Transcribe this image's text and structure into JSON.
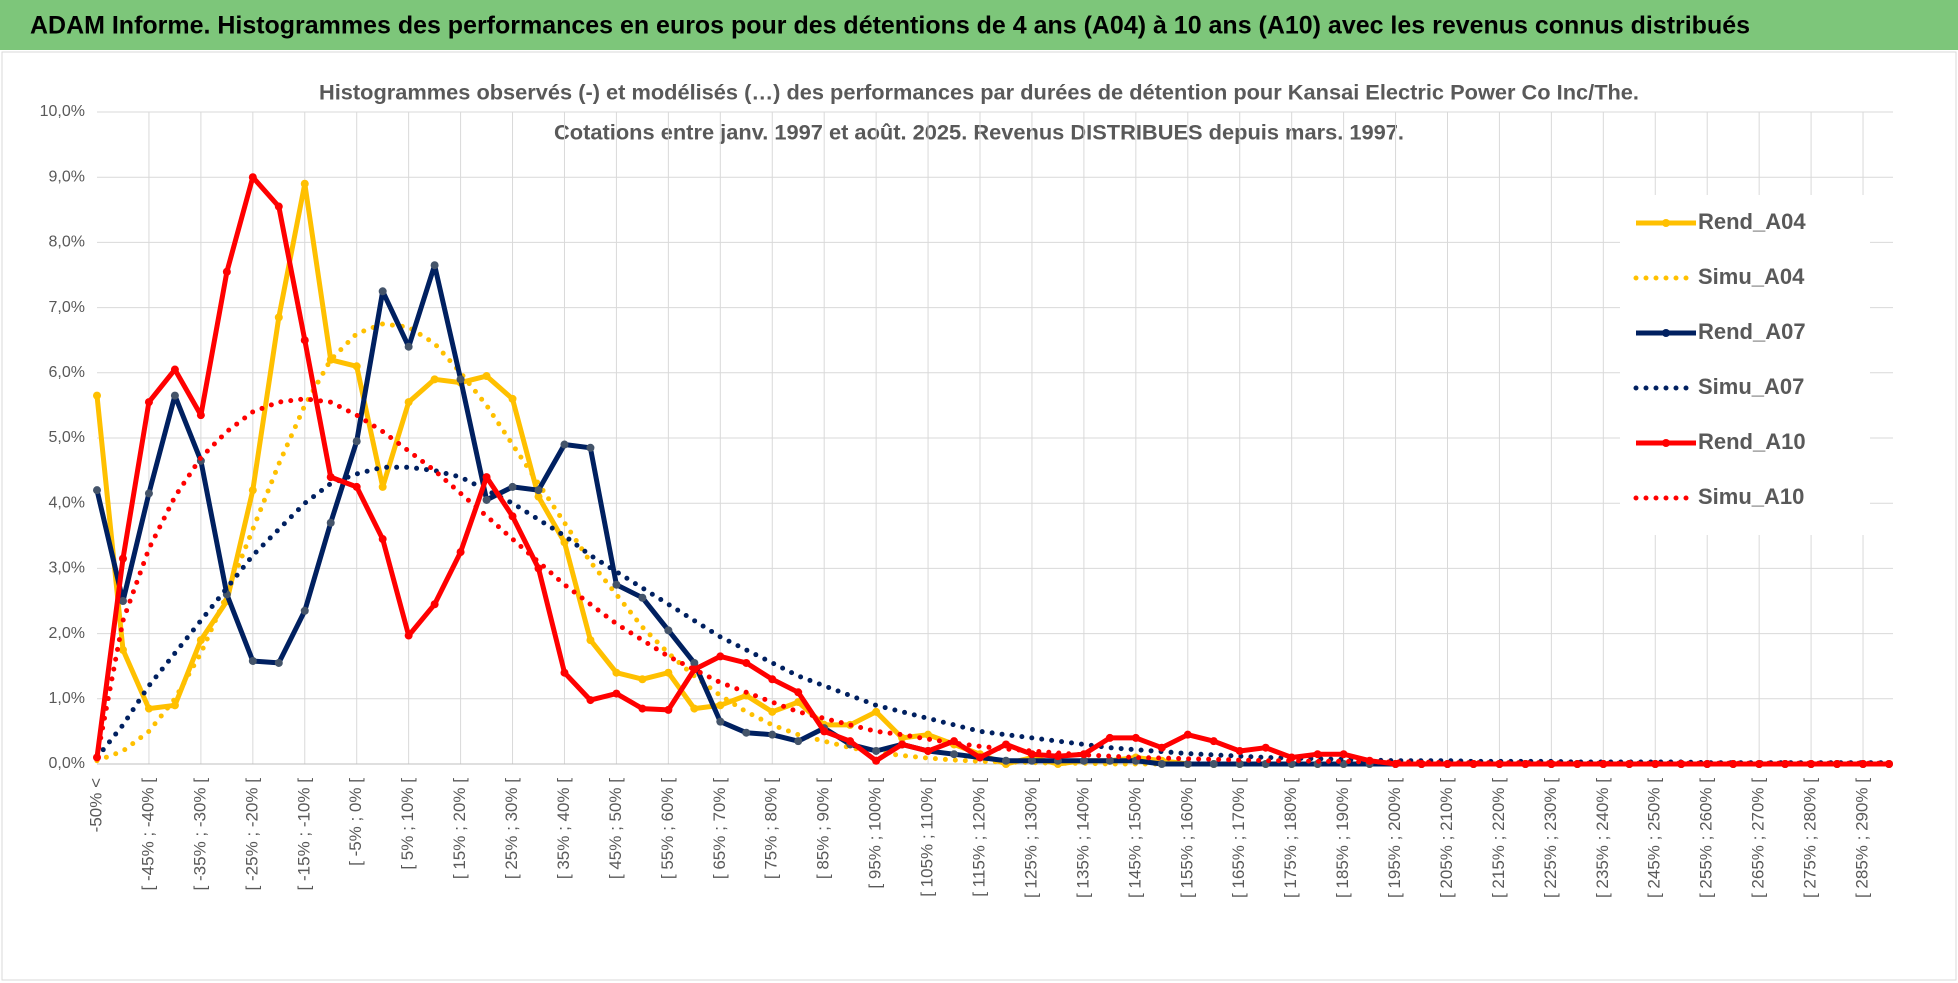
{
  "header": {
    "title": "ADAM Informe. Histogrammes des performances en euros pour des détentions de 4 ans (A04) à 10 ans (A10) avec les revenus connus distribués"
  },
  "chart_data": {
    "type": "line",
    "title": "Histogrammes observés (-) et modélisés (…)  des performances par durées de détention pour Kansai Electric Power Co Inc/The.",
    "subtitle": "Cotations entre janv. 1997 et août. 2025. Revenus DISTRIBUES depuis mars. 1997.",
    "categories": [
      "-50% <",
      null,
      "[ -45% ; -40% [",
      null,
      "[ -35% ; -30% [",
      null,
      "[ -25% ; -20% [",
      null,
      "[ -15% ; -10% [",
      null,
      "[ -5% ; 0% [",
      null,
      "[ 5% ; 10% [",
      null,
      "[ 15% ; 20% [",
      null,
      "[ 25% ; 30% [",
      null,
      "[ 35% ; 40% [",
      null,
      "[ 45% ; 50% [",
      null,
      "[ 55% ; 60% [",
      null,
      "[ 65% ; 70% [",
      null,
      "[ 75% ; 80% [",
      null,
      "[ 85% ; 90% [",
      null,
      "[ 95% ; 100% [",
      null,
      "[ 105% ; 110% [",
      null,
      "[ 115% ; 120% [",
      null,
      "[ 125% ; 130% [",
      null,
      "[ 135% ; 140% [",
      null,
      "[ 145% ; 150% [",
      null,
      "[ 155% ; 160% [",
      null,
      "[ 165% ; 170% [",
      null,
      "[ 175% ; 180% [",
      null,
      "[ 185% ; 190% [",
      null,
      "[ 195% ; 200% [",
      null,
      "[ 205% ; 210% [",
      null,
      "[ 215% ; 220% [",
      null,
      "[ 225% ; 230% [",
      null,
      "[ 235% ; 240% [",
      null,
      "[ 245% ; 250% [",
      null,
      "[ 255% ; 260% [",
      null,
      "[ 265% ; 270% [",
      null,
      "[ 275% ; 280% [",
      null,
      "[ 285% ; 290% [",
      null
    ],
    "ylim": [
      0,
      10
    ],
    "yticks": [
      {
        "value": 0,
        "label": "0,0%"
      },
      {
        "value": 1,
        "label": "1,0%"
      },
      {
        "value": 2,
        "label": "2,0%"
      },
      {
        "value": 3,
        "label": "3,0%"
      },
      {
        "value": 4,
        "label": "4,0%"
      },
      {
        "value": 5,
        "label": "5,0%"
      },
      {
        "value": 6,
        "label": "6,0%"
      },
      {
        "value": 7,
        "label": "7,0%"
      },
      {
        "value": 8,
        "label": "8,0%"
      },
      {
        "value": 9,
        "label": "9,0%"
      },
      {
        "value": 10,
        "label": "10,0%"
      }
    ],
    "grid": true,
    "legend": "right",
    "series": [
      {
        "name": "Rend_A04",
        "color": "#FFC000",
        "line_style": "solid",
        "markers": true,
        "values": [
          5.65,
          1.75,
          0.85,
          0.9,
          1.9,
          2.5,
          4.2,
          6.85,
          8.9,
          6.2,
          6.1,
          4.25,
          5.55,
          5.9,
          5.85,
          5.95,
          5.6,
          4.1,
          3.4,
          1.9,
          1.4,
          1.3,
          1.4,
          0.85,
          0.9,
          1.05,
          0.8,
          0.95,
          0.6,
          0.6,
          0.8,
          0.4,
          0.45,
          0.3,
          0.15,
          0.0,
          0.1,
          0.0,
          0.05,
          0.05,
          0.1,
          0.05,
          0,
          0,
          0,
          0,
          0,
          0,
          0,
          0,
          0,
          0,
          0,
          0,
          0,
          0,
          0,
          0,
          0,
          0,
          0,
          0,
          0,
          0,
          0,
          0,
          0,
          0,
          0,
          0
        ]
      },
      {
        "name": "Simu_A04",
        "color": "#FFC000",
        "line_style": "dotted",
        "markers": false,
        "values": [
          0.05,
          0.2,
          0.5,
          1.0,
          1.7,
          2.6,
          3.6,
          4.6,
          5.5,
          6.2,
          6.6,
          6.75,
          6.7,
          6.45,
          6.0,
          5.5,
          4.9,
          4.3,
          3.7,
          3.1,
          2.6,
          2.1,
          1.7,
          1.35,
          1.05,
          0.8,
          0.6,
          0.45,
          0.35,
          0.25,
          0.18,
          0.13,
          0.09,
          0.06,
          0.04,
          0.03,
          0.02,
          0.01,
          0.01,
          0,
          0,
          0,
          0,
          0,
          0,
          0,
          0,
          0,
          0,
          0,
          0,
          0,
          0,
          0,
          0,
          0,
          0,
          0,
          0,
          0,
          0,
          0,
          0,
          0,
          0,
          0,
          0,
          0,
          0,
          0
        ]
      },
      {
        "name": "Rend_A07",
        "color": "#002060",
        "line_style": "solid",
        "markers": true,
        "values": [
          4.2,
          2.5,
          4.15,
          5.65,
          4.65,
          2.6,
          1.58,
          1.55,
          2.35,
          3.7,
          4.95,
          7.25,
          6.4,
          7.65,
          5.9,
          4.05,
          4.25,
          4.2,
          4.9,
          4.85,
          2.75,
          2.55,
          2.05,
          1.55,
          0.65,
          0.48,
          0.45,
          0.35,
          0.55,
          0.3,
          0.2,
          0.3,
          0.2,
          0.15,
          0.1,
          0.05,
          0.05,
          0.05,
          0.05,
          0.05,
          0.05,
          0,
          0,
          0,
          0,
          0,
          0,
          0,
          0,
          0,
          0,
          0,
          0,
          0,
          0,
          0,
          0,
          0,
          0,
          0,
          0,
          0,
          0,
          0,
          0,
          0,
          0,
          0,
          0,
          0
        ]
      },
      {
        "name": "Simu_A07",
        "color": "#002060",
        "line_style": "dotted",
        "markers": false,
        "values": [
          0.1,
          0.6,
          1.2,
          1.7,
          2.2,
          2.7,
          3.2,
          3.6,
          4.0,
          4.3,
          4.45,
          4.55,
          4.55,
          4.5,
          4.4,
          4.2,
          4.0,
          3.75,
          3.5,
          3.2,
          2.95,
          2.7,
          2.45,
          2.2,
          1.95,
          1.75,
          1.55,
          1.35,
          1.2,
          1.05,
          0.9,
          0.8,
          0.7,
          0.6,
          0.5,
          0.45,
          0.4,
          0.35,
          0.3,
          0.25,
          0.22,
          0.19,
          0.16,
          0.14,
          0.12,
          0.1,
          0.09,
          0.08,
          0.07,
          0.06,
          0.05,
          0.05,
          0.05,
          0.04,
          0.04,
          0.04,
          0.04,
          0.03,
          0.03,
          0.03,
          0.03,
          0.03,
          0.02,
          0.02,
          0.02,
          0.02,
          0.02,
          0.02,
          0.02,
          0.02
        ]
      },
      {
        "name": "Rend_A10",
        "color": "#FF0000",
        "line_style": "solid",
        "markers": true,
        "values": [
          0.1,
          3.15,
          5.55,
          6.05,
          5.35,
          7.55,
          9.0,
          8.55,
          6.5,
          4.4,
          4.25,
          3.45,
          1.97,
          2.45,
          3.25,
          4.4,
          3.8,
          3.0,
          1.4,
          0.98,
          1.08,
          0.85,
          0.83,
          1.45,
          1.65,
          1.55,
          1.3,
          1.1,
          0.5,
          0.35,
          0.05,
          0.3,
          0.2,
          0.35,
          0.1,
          0.3,
          0.15,
          0.12,
          0.15,
          0.4,
          0.4,
          0.25,
          0.45,
          0.35,
          0.2,
          0.25,
          0.1,
          0.15,
          0.15,
          0.05,
          0,
          0,
          0,
          0,
          0,
          0,
          0,
          0,
          0,
          0,
          0,
          0,
          0,
          0,
          0,
          0,
          0,
          0,
          0,
          0
        ]
      },
      {
        "name": "Simu_A10",
        "color": "#FF0000",
        "line_style": "dotted",
        "markers": false,
        "values": [
          0.1,
          2.2,
          3.3,
          4.1,
          4.7,
          5.1,
          5.4,
          5.55,
          5.6,
          5.55,
          5.35,
          5.1,
          4.8,
          4.5,
          4.15,
          3.8,
          3.45,
          3.1,
          2.75,
          2.45,
          2.15,
          1.9,
          1.65,
          1.45,
          1.25,
          1.1,
          0.95,
          0.8,
          0.7,
          0.6,
          0.5,
          0.45,
          0.38,
          0.32,
          0.27,
          0.23,
          0.2,
          0.17,
          0.14,
          0.12,
          0.1,
          0.09,
          0.08,
          0.07,
          0.06,
          0.05,
          0.05,
          0.04,
          0.04,
          0.03,
          0.03,
          0.03,
          0.02,
          0.02,
          0.02,
          0.02,
          0.02,
          0.01,
          0.01,
          0.01,
          0.01,
          0.01,
          0.01,
          0.01,
          0.01,
          0.01,
          0.01,
          0.01,
          0.01,
          0.01
        ]
      }
    ]
  }
}
